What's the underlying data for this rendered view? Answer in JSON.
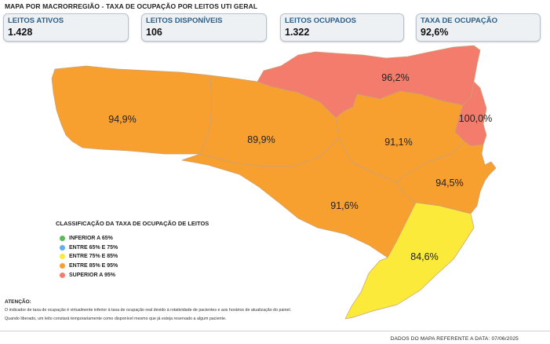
{
  "header": {
    "title": "MAPA POR MACRORREGIÃO - TAXA DE OCUPAÇÃO POR LEITOS UTI GERAL"
  },
  "kpis": [
    {
      "label": "LEITOS ATIVOS",
      "value": "1.428"
    },
    {
      "label": "LEITOS DISPONÍVEIS",
      "value": "106"
    },
    {
      "label": "LEITOS OCUPADOS",
      "value": "1.322"
    },
    {
      "label": "TAXA DE OCUPAÇÃO",
      "value": "92,6%"
    }
  ],
  "map": {
    "regions": [
      {
        "id": "extremo-oeste",
        "value_label": "94,9%",
        "rate": 94.9,
        "color": "#f7a030"
      },
      {
        "id": "meio-oeste",
        "value_label": "89,9%",
        "rate": 89.9,
        "color": "#f7a030"
      },
      {
        "id": "planalto-norte",
        "value_label": "96,2%",
        "rate": 96.2,
        "color": "#f47c6c"
      },
      {
        "id": "vale-itajai",
        "value_label": "91,1%",
        "rate": 91.1,
        "color": "#f7a030"
      },
      {
        "id": "nordeste",
        "value_label": "100,0%",
        "rate": 100.0,
        "color": "#f47c6c"
      },
      {
        "id": "grande-florianopolis",
        "value_label": "94,5%",
        "rate": 94.5,
        "color": "#f7a030"
      },
      {
        "id": "serra",
        "value_label": "91,6%",
        "rate": 91.6,
        "color": "#f7a030"
      },
      {
        "id": "sul",
        "value_label": "84,6%",
        "rate": 84.6,
        "color": "#fbea3a"
      }
    ]
  },
  "legend": {
    "title": "CLASSIFICAÇÃO DA TAXA DE OCUPAÇÃO DE LEITOS",
    "items": [
      {
        "label": "INFERIOR A 65%",
        "color": "#5cb85c"
      },
      {
        "label": "ENTRE 65% E 75%",
        "color": "#5fb0e8"
      },
      {
        "label": "ENTRE 75% E 85%",
        "color": "#fbea3a"
      },
      {
        "label": "ENTRE 85% E 95%",
        "color": "#f7a030"
      },
      {
        "label": "SUPERIOR A 95%",
        "color": "#f47c6c"
      }
    ]
  },
  "notes": {
    "title": "ATENÇÃO:",
    "line1": "O indicador de taxa de ocupação é virtualmente inferior à taxa de ocupação real devido à rotatividade de pacientes e aos horários de atualização do painel.",
    "line2": "Quando liberado, um leito constará temporariamente como disponível mesmo que já esteja reservado a algum paciente."
  },
  "footer": {
    "date_text": "DADOS DO MAPA REFERENTE A DATA: 07/06/2025"
  }
}
